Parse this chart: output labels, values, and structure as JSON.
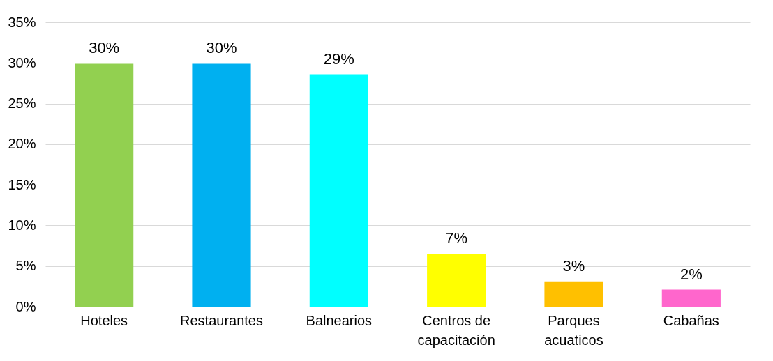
{
  "chart_data": {
    "type": "bar",
    "categories": [
      "Hoteles",
      "Restaurantes",
      "Balnearios",
      "Centros de capacitación",
      "Parques acuaticos",
      "Cabañas"
    ],
    "values": [
      29.9,
      29.9,
      28.6,
      6.5,
      3.1,
      2.1
    ],
    "colors": [
      "#92d050",
      "#00b0f0",
      "#00ffff",
      "#ffff00",
      "#ffc000",
      "#ff66cc"
    ],
    "value_labels": [
      "30%",
      "30%",
      "29%",
      "7%",
      "3%",
      "2%"
    ],
    "ylim": [
      0,
      35
    ],
    "yticks": [
      {
        "value": 0,
        "label": "0%"
      },
      {
        "value": 5,
        "label": "5%"
      },
      {
        "value": 10,
        "label": "10%"
      },
      {
        "value": 15,
        "label": "15%"
      },
      {
        "value": 20,
        "label": "20%"
      },
      {
        "value": 25,
        "label": "25%"
      },
      {
        "value": 30,
        "label": "30%"
      },
      {
        "value": 35,
        "label": "35%"
      }
    ],
    "grid": "y"
  }
}
